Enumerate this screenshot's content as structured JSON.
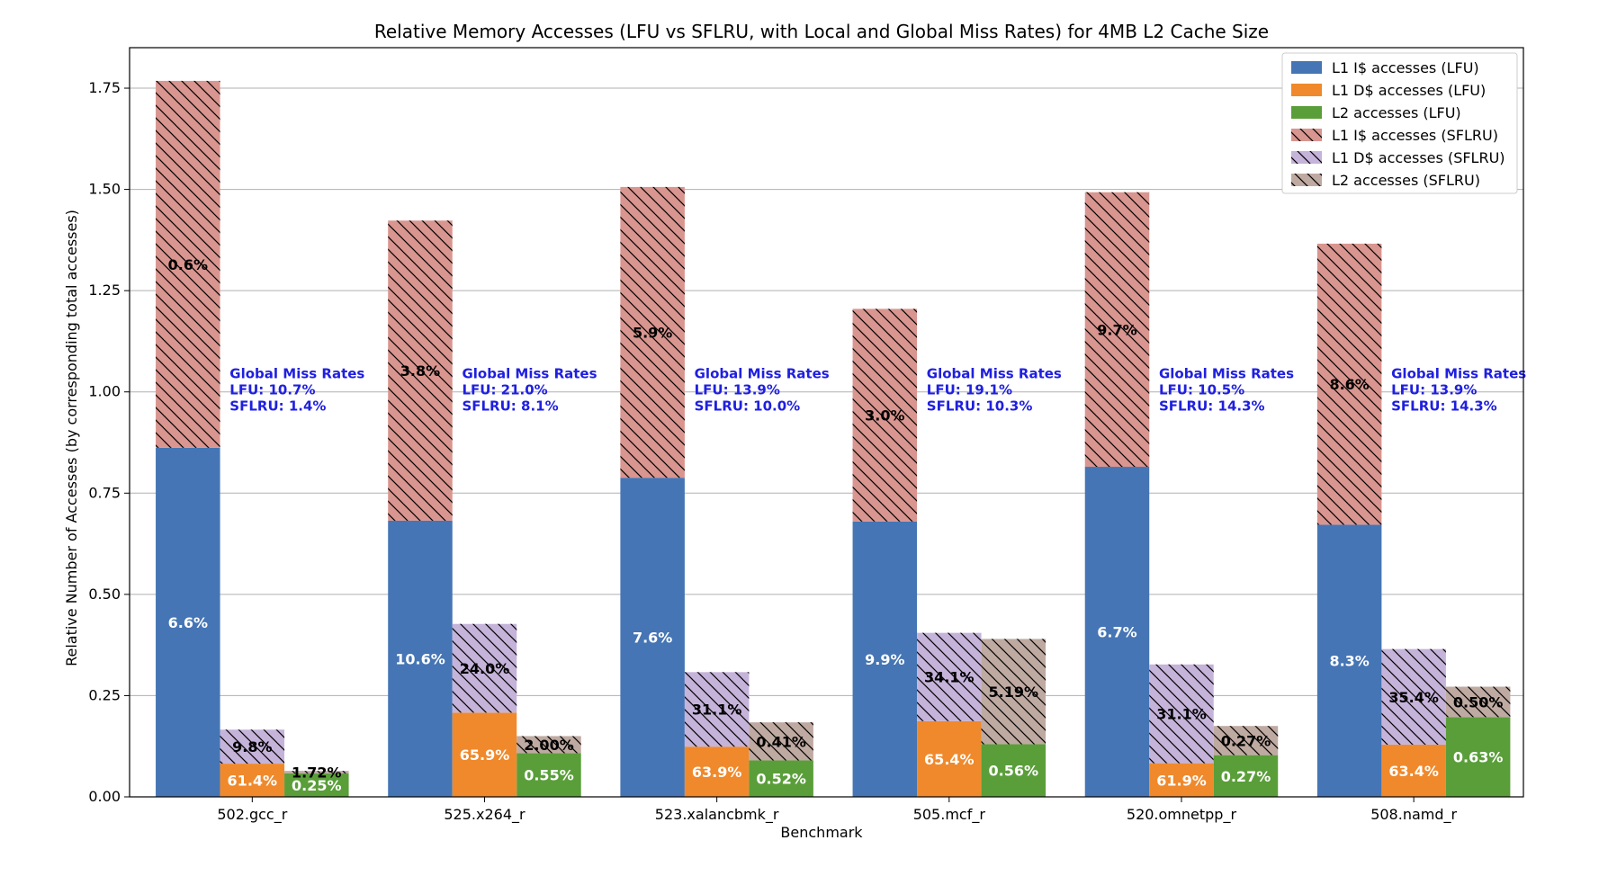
{
  "chart_data": {
    "type": "bar",
    "title": "Relative Memory Accesses (LFU vs SFLRU, with Local and Global Miss Rates) for 4MB L2 Cache Size",
    "xlabel": "Benchmark",
    "ylabel": "Relative Number of Accesses (by corresponding total accesses)",
    "ylim": [
      0,
      1.85
    ],
    "yticks": [
      "0.00",
      "0.25",
      "0.50",
      "0.75",
      "1.00",
      "1.25",
      "1.50",
      "1.75"
    ],
    "ytick_values": [
      0,
      0.25,
      0.5,
      0.75,
      1.0,
      1.25,
      1.5,
      1.75
    ],
    "grid": "horizontal",
    "legend_position": "top-right",
    "categories": [
      "502.gcc_r",
      "525.x264_r",
      "523.xalancbmk_r",
      "505.mcf_r",
      "520.omnetpp_r",
      "508.namd_r"
    ],
    "series": [
      {
        "name": "L1 I$ accesses (LFU)",
        "color": "#4575b4",
        "hatch": false,
        "group": 0,
        "stack": "base",
        "label_color": "#ffffff",
        "values": [
          0.862,
          0.682,
          0.788,
          0.68,
          0.815,
          0.672
        ],
        "labels": [
          "6.6%",
          "10.6%",
          "7.6%",
          "9.9%",
          "6.7%",
          "8.3%"
        ]
      },
      {
        "name": "L1 D$ accesses (LFU)",
        "color": "#f0892b",
        "hatch": false,
        "group": 1,
        "stack": "base",
        "label_color": "#ffffff",
        "values": [
          0.082,
          0.208,
          0.124,
          0.187,
          0.083,
          0.129
        ],
        "labels": [
          "61.4%",
          "65.9%",
          "63.9%",
          "65.4%",
          "61.9%",
          "63.4%"
        ]
      },
      {
        "name": "L2 accesses (LFU)",
        "color": "#5a9e3a",
        "hatch": false,
        "group": 2,
        "stack": "base",
        "label_color": "#ffffff",
        "values": [
          0.058,
          0.108,
          0.09,
          0.13,
          0.103,
          0.197
        ],
        "labels": [
          "0.25%",
          "0.55%",
          "0.52%",
          "0.56%",
          "0.27%",
          "0.63%"
        ]
      },
      {
        "name": "L1 I$ accesses (SFLRU)",
        "color": "#d9958f",
        "hatch": true,
        "group": 0,
        "stack": "top",
        "label_color": "#000000",
        "values": [
          0.906,
          0.741,
          0.718,
          0.525,
          0.678,
          0.694
        ],
        "labels": [
          "0.6%",
          "3.8%",
          "5.9%",
          "3.0%",
          "9.7%",
          "8.6%"
        ]
      },
      {
        "name": "L1 D$ accesses (SFLRU)",
        "color": "#c5b3da",
        "hatch": true,
        "group": 1,
        "stack": "top",
        "label_color": "#000000",
        "values": [
          0.084,
          0.219,
          0.184,
          0.218,
          0.244,
          0.236
        ],
        "labels": [
          "9.8%",
          "24.0%",
          "31.1%",
          "34.1%",
          "31.1%",
          "35.4%"
        ]
      },
      {
        "name": "L2 accesses (SFLRU)",
        "color": "#bfaaa2",
        "hatch": true,
        "group": 2,
        "stack": "top",
        "label_color": "#000000",
        "values": [
          0.006,
          0.042,
          0.094,
          0.26,
          0.072,
          0.075
        ],
        "labels": [
          "1.72%",
          "2.00%",
          "0.41%",
          "5.19%",
          "0.27%",
          "0.50%"
        ]
      }
    ],
    "annotations": [
      {
        "title": "Global Miss Rates",
        "lfu": "LFU: 10.7%",
        "sflru": "SFLRU: 1.4%"
      },
      {
        "title": "Global Miss Rates",
        "lfu": "LFU: 21.0%",
        "sflru": "SFLRU: 8.1%"
      },
      {
        "title": "Global Miss Rates",
        "lfu": "LFU: 13.9%",
        "sflru": "SFLRU: 10.0%"
      },
      {
        "title": "Global Miss Rates",
        "lfu": "LFU: 19.1%",
        "sflru": "SFLRU: 10.3%"
      },
      {
        "title": "Global Miss Rates",
        "lfu": "LFU: 10.5%",
        "sflru": "SFLRU: 14.3%"
      },
      {
        "title": "Global Miss Rates",
        "lfu": "LFU: 13.9%",
        "sflru": "SFLRU: 14.3%"
      }
    ],
    "annotation_color": "#1f1fe0"
  }
}
